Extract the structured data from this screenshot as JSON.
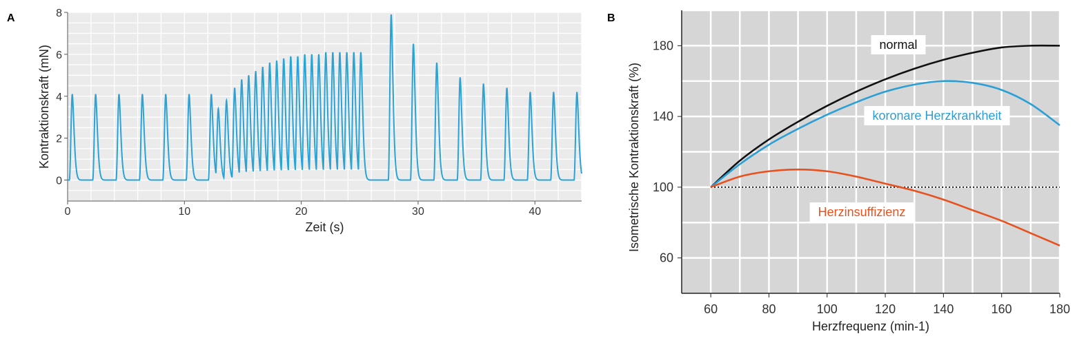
{
  "chart_data": [
    {
      "panel": "A",
      "type": "line",
      "xlabel": "Zeit (s)",
      "ylabel": "Kontraktionskraft (mN)",
      "xlim": [
        0,
        44
      ],
      "ylim": [
        -1,
        8
      ],
      "xticks": [
        0,
        10,
        20,
        30,
        40
      ],
      "yticks": [
        0,
        2,
        4,
        6,
        8
      ],
      "grid": true,
      "color": "#2aa3d6",
      "series": [
        {
          "peaks": [
            {
              "t": 0.4,
              "f": 4.1
            },
            {
              "t": 2.4,
              "f": 4.1
            },
            {
              "t": 4.4,
              "f": 4.1
            },
            {
              "t": 6.4,
              "f": 4.1
            },
            {
              "t": 8.4,
              "f": 4.1
            },
            {
              "t": 10.4,
              "f": 4.1
            },
            {
              "t": 12.3,
              "f": 4.1
            },
            {
              "t": 12.9,
              "f": 3.4
            },
            {
              "t": 13.6,
              "f": 3.8
            },
            {
              "t": 14.3,
              "f": 4.4
            },
            {
              "t": 14.9,
              "f": 4.8
            },
            {
              "t": 15.5,
              "f": 5.0
            },
            {
              "t": 16.1,
              "f": 5.2
            },
            {
              "t": 16.7,
              "f": 5.4
            },
            {
              "t": 17.3,
              "f": 5.6
            },
            {
              "t": 17.9,
              "f": 5.7
            },
            {
              "t": 18.5,
              "f": 5.8
            },
            {
              "t": 19.1,
              "f": 5.9
            },
            {
              "t": 19.7,
              "f": 5.9
            },
            {
              "t": 20.3,
              "f": 6.0
            },
            {
              "t": 20.9,
              "f": 6.0
            },
            {
              "t": 21.5,
              "f": 6.0
            },
            {
              "t": 22.1,
              "f": 6.1
            },
            {
              "t": 22.7,
              "f": 6.1
            },
            {
              "t": 23.3,
              "f": 6.1
            },
            {
              "t": 23.9,
              "f": 6.1
            },
            {
              "t": 24.5,
              "f": 6.1
            },
            {
              "t": 25.1,
              "f": 6.1
            },
            {
              "t": 27.7,
              "f": 7.9
            },
            {
              "t": 29.6,
              "f": 6.5
            },
            {
              "t": 31.6,
              "f": 5.6
            },
            {
              "t": 33.6,
              "f": 4.9
            },
            {
              "t": 35.6,
              "f": 4.6
            },
            {
              "t": 37.6,
              "f": 4.4
            },
            {
              "t": 39.6,
              "f": 4.2
            },
            {
              "t": 41.6,
              "f": 4.2
            },
            {
              "t": 43.6,
              "f": 4.2
            }
          ],
          "baseline": 0
        }
      ]
    },
    {
      "panel": "B",
      "type": "line",
      "xlabel": "Herzfrequenz (min-1)",
      "ylabel": "Isometrische Kontraktionskraft (%)",
      "xlim": [
        50,
        180
      ],
      "ylim": [
        40,
        200
      ],
      "xticks": [
        60,
        80,
        100,
        120,
        140,
        160,
        180
      ],
      "yticks": [
        60,
        100,
        140,
        180
      ],
      "reference_line": 100,
      "grid": true,
      "series": [
        {
          "name": "normal",
          "color": "#111111",
          "x": [
            60,
            70,
            80,
            90,
            100,
            110,
            120,
            130,
            140,
            150,
            160,
            170,
            180
          ],
          "y": [
            100,
            115,
            127,
            137,
            146,
            154,
            161,
            167,
            172,
            176,
            179,
            180,
            180
          ]
        },
        {
          "name": "koronare Herzkrankheit",
          "color": "#2a9fd6",
          "x": [
            60,
            70,
            80,
            90,
            100,
            110,
            120,
            130,
            140,
            150,
            160,
            170,
            180
          ],
          "y": [
            100,
            113,
            124,
            133,
            141,
            148,
            154,
            158,
            160,
            159,
            155,
            147,
            135
          ]
        },
        {
          "name": "Herzinsuffizienz",
          "color": "#e8501e",
          "x": [
            60,
            70,
            80,
            90,
            100,
            110,
            120,
            130,
            140,
            150,
            160,
            170,
            180
          ],
          "y": [
            100,
            106,
            109,
            110,
            109,
            106,
            102,
            98,
            93,
            87,
            81,
            74,
            67
          ]
        }
      ]
    }
  ]
}
